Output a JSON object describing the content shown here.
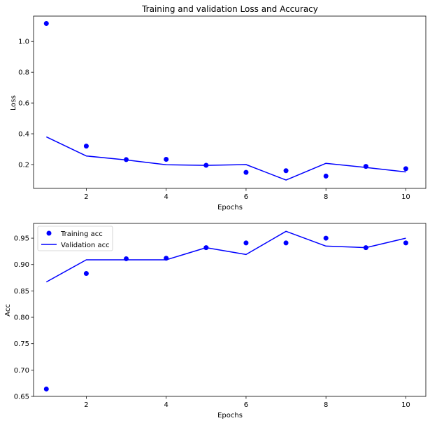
{
  "chart_data": [
    {
      "type": "line",
      "title": "Training and validation Loss and Accuracy",
      "xlabel": "Epochs",
      "ylabel": "Loss",
      "x": [
        1,
        2,
        3,
        4,
        5,
        6,
        7,
        8,
        9,
        10
      ],
      "xlim": [
        0.68,
        10.5
      ],
      "ylim": [
        0.045,
        1.165
      ],
      "xticks": [
        2,
        4,
        6,
        8,
        10
      ],
      "yticks": [
        0.2,
        0.4,
        0.6,
        0.8,
        1.0
      ],
      "ytick_labels": [
        "0.2",
        "0.4",
        "0.6",
        "0.8",
        "1.0"
      ],
      "grid": false,
      "legend": "none",
      "series": [
        {
          "name": "",
          "style": "points",
          "color": "#0000ff",
          "values": [
            1.117,
            0.32,
            0.232,
            0.234,
            0.195,
            0.149,
            0.16,
            0.125,
            0.188,
            0.173
          ]
        },
        {
          "name": "",
          "style": "line",
          "color": "#0000ff",
          "values": [
            0.38,
            0.256,
            0.23,
            0.199,
            0.195,
            0.2,
            0.099,
            0.208,
            0.181,
            0.152
          ]
        }
      ]
    },
    {
      "type": "line",
      "title": "",
      "xlabel": "Epochs",
      "ylabel": "Acc",
      "x": [
        1,
        2,
        3,
        4,
        5,
        6,
        7,
        8,
        9,
        10
      ],
      "xlim": [
        0.68,
        10.5
      ],
      "ylim": [
        0.65,
        0.978
      ],
      "xticks": [
        2,
        4,
        6,
        8,
        10
      ],
      "yticks": [
        0.65,
        0.7,
        0.75,
        0.8,
        0.85,
        0.9,
        0.95
      ],
      "ytick_labels": [
        "0.65",
        "0.70",
        "0.75",
        "0.80",
        "0.85",
        "0.90",
        "0.95"
      ],
      "grid": false,
      "legend": "top-left",
      "series": [
        {
          "name": "Training acc",
          "style": "points",
          "color": "#0000ff",
          "values": [
            0.664,
            0.883,
            0.911,
            0.912,
            0.932,
            0.941,
            0.941,
            0.95,
            0.932,
            0.941
          ]
        },
        {
          "name": "Validation acc",
          "style": "line",
          "color": "#0000ff",
          "values": [
            0.867,
            0.909,
            0.909,
            0.909,
            0.932,
            0.919,
            0.963,
            0.935,
            0.932,
            0.95
          ]
        }
      ]
    }
  ]
}
